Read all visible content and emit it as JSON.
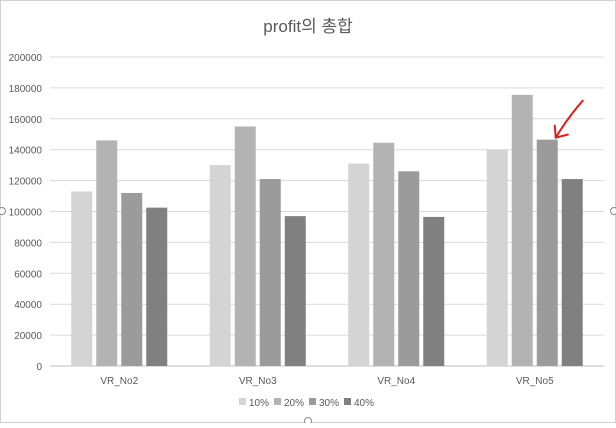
{
  "chart_data": {
    "type": "bar",
    "title": "profit의 총합",
    "categories": [
      "VR_No2",
      "VR_No3",
      "VR_No4",
      "VR_No5"
    ],
    "series": [
      {
        "name": "10%",
        "values": [
          113000,
          130000,
          131000,
          140000
        ],
        "color": "#d4d4d4"
      },
      {
        "name": "20%",
        "values": [
          146000,
          155000,
          144500,
          175500
        ],
        "color": "#b3b3b3"
      },
      {
        "name": "30%",
        "values": [
          112000,
          121000,
          126000,
          146500
        ],
        "color": "#9b9b9b"
      },
      {
        "name": "40%",
        "values": [
          102500,
          97000,
          96500,
          121000
        ],
        "color": "#808080"
      }
    ],
    "ylim": [
      0,
      200000
    ],
    "yticks": [
      "0",
      "20000",
      "40000",
      "60000",
      "80000",
      "100000",
      "120000",
      "140000",
      "160000",
      "180000",
      "200000"
    ],
    "grid": true,
    "legend": "bottom",
    "xlabel": "",
    "ylabel": ""
  },
  "annotation": {
    "type": "arrow",
    "color": "#d9201c",
    "target_category": "VR_No5",
    "target_series": "30%"
  }
}
